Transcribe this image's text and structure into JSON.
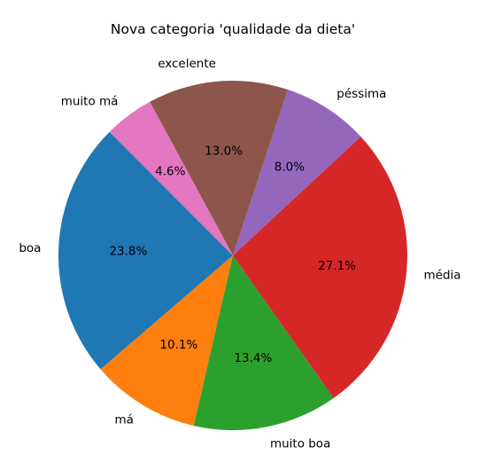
{
  "chart_data": {
    "type": "pie",
    "title": "Nova categoria 'qualidade da dieta'",
    "start_angle_deg": 135,
    "direction": "counterclockwise",
    "slices": [
      {
        "label": "boa",
        "value": 23.8,
        "pct_label": "23.8%",
        "color": "#1f77b4"
      },
      {
        "label": "má",
        "value": 10.1,
        "pct_label": "10.1%",
        "color": "#ff7f0e"
      },
      {
        "label": "muito boa",
        "value": 13.4,
        "pct_label": "13.4%",
        "color": "#2ca02c"
      },
      {
        "label": "média",
        "value": 27.1,
        "pct_label": "27.1%",
        "color": "#d62728"
      },
      {
        "label": "péssima",
        "value": 8.0,
        "pct_label": "8.0%",
        "color": "#9467bd"
      },
      {
        "label": "excelente",
        "value": 13.0,
        "pct_label": "13.0%",
        "color": "#8c564b"
      },
      {
        "label": "muito má",
        "value": 4.6,
        "pct_label": "4.6%",
        "color": "#e377c2"
      }
    ]
  }
}
